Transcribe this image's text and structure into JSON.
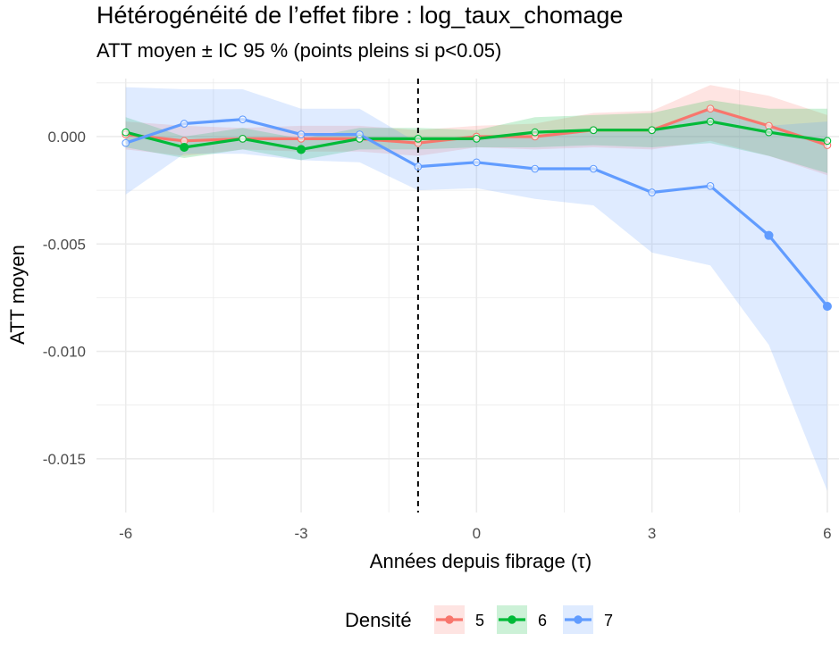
{
  "title": "Hétérogénéité de l’effet fibre : log_taux_chomage",
  "subtitle": "ATT moyen ± IC 95 % (points pleins si p<0.05)",
  "colors": {
    "5": "#f8766d",
    "6": "#00ba38",
    "7": "#619cff",
    "grid": "#ebebeb",
    "vline": "#000000"
  },
  "legend": {
    "title": "Densité",
    "items": [
      "5",
      "6",
      "7"
    ]
  },
  "chart_data": {
    "type": "line",
    "title": "Hétérogénéité de l’effet fibre : log_taux_chomage",
    "subtitle": "ATT moyen ± IC 95 % (points pleins si p<0.05)",
    "xlabel": "Années depuis fibrage (τ)",
    "ylabel": "ATT moyen",
    "xlim": [
      -6.5,
      6.2
    ],
    "ylim": [
      -0.0175,
      0.0027
    ],
    "xticks": [
      -6,
      -3,
      0,
      3,
      6
    ],
    "xtick_labels": [
      "-6",
      "-3",
      "0",
      "3",
      "6"
    ],
    "yticks": [
      0.0,
      -0.005,
      -0.01,
      -0.015
    ],
    "ytick_labels": [
      "0.000",
      "-0.005",
      "-0.010",
      "-0.015"
    ],
    "grid": true,
    "vline": {
      "x": -1,
      "style": "dashed"
    },
    "legend_position": "bottom",
    "x": [
      -6,
      -5,
      -4,
      -3,
      -2,
      -1,
      0,
      1,
      2,
      3,
      4,
      5,
      6
    ],
    "series": [
      {
        "name": "5",
        "values": [
          0.0001,
          -0.0002,
          -0.0001,
          -0.0001,
          -0.0001,
          -0.0003,
          0.0,
          0.0,
          0.0003,
          0.0003,
          0.0013,
          0.0005,
          -0.0004
        ],
        "ci_low": [
          -0.0006,
          -0.0009,
          -0.0006,
          -0.0007,
          -0.0007,
          -0.0009,
          -0.0005,
          -0.0006,
          -0.0005,
          -0.0006,
          -0.0002,
          -0.0009,
          -0.0018
        ],
        "ci_high": [
          0.0007,
          0.0005,
          0.0004,
          0.0005,
          0.0005,
          0.0003,
          0.0005,
          0.0006,
          0.0011,
          0.0012,
          0.0024,
          0.0019,
          0.001
        ],
        "significant": [
          false,
          false,
          false,
          false,
          false,
          false,
          false,
          false,
          false,
          false,
          false,
          false,
          false
        ]
      },
      {
        "name": "6",
        "values": [
          0.0002,
          -0.0005,
          -0.0001,
          -0.0006,
          -0.0001,
          -0.0001,
          -0.0001,
          0.0002,
          0.0003,
          0.0003,
          0.0007,
          0.0002,
          -0.0002
        ],
        "ci_low": [
          -0.0005,
          -0.001,
          -0.0006,
          -0.0011,
          -0.0006,
          -0.0006,
          -0.0005,
          -0.0005,
          -0.0004,
          -0.0005,
          -0.0003,
          -0.0009,
          -0.0017
        ],
        "ci_high": [
          0.0009,
          0.0,
          0.0004,
          -0.0001,
          0.0004,
          0.0004,
          0.0003,
          0.0009,
          0.001,
          0.0011,
          0.0017,
          0.0013,
          0.0013
        ],
        "significant": [
          false,
          true,
          false,
          true,
          false,
          false,
          false,
          false,
          false,
          false,
          false,
          false,
          false
        ]
      },
      {
        "name": "7",
        "values": [
          -0.0003,
          0.0006,
          0.0008,
          0.0001,
          0.0001,
          -0.0014,
          -0.0012,
          -0.0015,
          -0.0015,
          -0.0026,
          -0.0023,
          -0.0046,
          -0.0079
        ],
        "ci_low": [
          -0.0027,
          -0.0008,
          -0.0008,
          -0.0011,
          -0.0012,
          -0.0025,
          -0.0024,
          -0.0029,
          -0.0032,
          -0.0054,
          -0.006,
          -0.0097,
          -0.0165
        ],
        "ci_high": [
          0.0023,
          0.0022,
          0.0022,
          0.0013,
          0.0013,
          -0.0003,
          0.0,
          0.0,
          0.0002,
          0.0002,
          0.0014,
          0.0005,
          0.0007
        ],
        "significant": [
          false,
          false,
          false,
          false,
          false,
          false,
          false,
          false,
          false,
          false,
          false,
          true,
          true
        ]
      }
    ]
  }
}
